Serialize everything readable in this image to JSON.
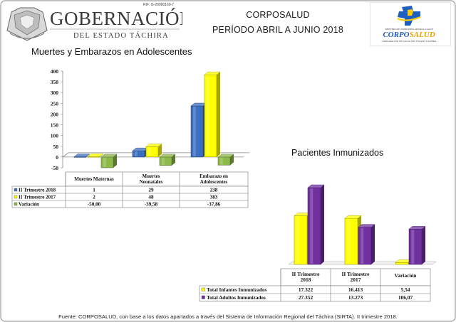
{
  "header": {
    "ref_code": "RIF: G-20000160-7",
    "left_logo": {
      "line1": "GOBERNACIÓN",
      "line2": "DEL ESTADO TÁCHIRA"
    },
    "title": "CORPOSALUD",
    "subtitle": "PERÍODO ABRIL A JUNIO 2018",
    "right_logo": {
      "top_text": "MINISTERIO DEL PODER POPULAR PARA LA SALUD",
      "name_a": "CORPO",
      "name_b": "SALUD",
      "caption": "CORPORACIÓN DE SALUD DEL ESTADO TÁCHIRA"
    }
  },
  "colors": {
    "blue": "#3d6fc1",
    "yellow": "#ffff00",
    "green": "#8db84a",
    "purple": "#7030a0"
  },
  "chart_data": [
    {
      "type": "bar",
      "title": "Muertes y Embarazos en Adolescentes",
      "categories": [
        "Muertes Maternas",
        "Muertes Neonatales",
        "Embarazo en Adolescentes"
      ],
      "series": [
        {
          "name": "II Trimestre 2018",
          "values": [
            1,
            29,
            238
          ],
          "labels": [
            "1",
            "29",
            "238"
          ],
          "color": "#3d6fc1"
        },
        {
          "name": "II Trimestre 2017",
          "values": [
            2,
            48,
            383
          ],
          "labels": [
            "2",
            "48",
            "383"
          ],
          "color": "#ffff00"
        },
        {
          "name": "Variación",
          "values": [
            -50.0,
            -39.58,
            -37.86
          ],
          "labels": [
            "-50,00",
            "-39,58",
            "-37,86"
          ],
          "color": "#8db84a"
        }
      ],
      "ylim": [
        -50,
        400
      ],
      "yticks": [
        -50,
        0,
        50,
        100,
        150,
        200,
        250,
        300,
        350,
        400
      ],
      "legend": "data-table"
    },
    {
      "type": "bar",
      "title": "Pacientes Inmunizados",
      "categories": [
        "II Trimestre 2018",
        "II Trimestre 2017",
        "Variación"
      ],
      "series": [
        {
          "name": "Total Infantes Inmunizados",
          "values": [
            17322,
            16413,
            5.54
          ],
          "labels": [
            "17.322",
            "16.413",
            "5,54"
          ],
          "color": "#ffff00"
        },
        {
          "name": "Total Adultos Inmunizados",
          "values": [
            27352,
            13273,
            106.07
          ],
          "labels": [
            "27.352",
            "13.273",
            "106,07"
          ],
          "color": "#7030a0"
        }
      ],
      "legend": "data-table"
    }
  ],
  "footnote": "Fuente: CORPOSALUD, con base a  los datos apartados a través del Sistema de  Información Regional del Táchira (SIRTA). II trimestre 2018."
}
